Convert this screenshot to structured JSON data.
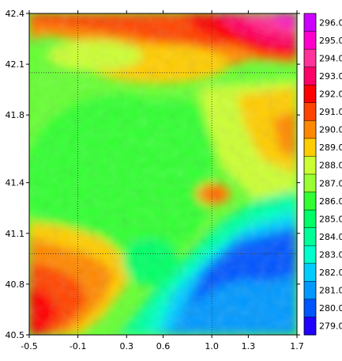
{
  "chart_data": {
    "type": "heatmap",
    "title": "",
    "xlabel": "",
    "ylabel": "",
    "xlim": [
      -0.5,
      1.7
    ],
    "ylim": [
      40.5,
      42.4
    ],
    "x_ticks": [
      "-0.5",
      "-0.1",
      "0.3",
      "0.6",
      "1.0",
      "1.3",
      "1.7"
    ],
    "x_tick_values": [
      -0.5,
      -0.1,
      0.3,
      0.6,
      1.0,
      1.3,
      1.7
    ],
    "y_ticks": [
      "42.4",
      "42.1",
      "41.8",
      "41.4",
      "41.1",
      "40.8",
      "40.5"
    ],
    "y_tick_values": [
      42.4,
      42.1,
      41.8,
      41.4,
      41.1,
      40.8,
      40.5
    ],
    "grid_lines": {
      "x": [
        -0.1,
        1.0
      ],
      "y": [
        42.05,
        40.98
      ],
      "style": "dotted"
    },
    "colorbar": {
      "placement": "right",
      "levels": [
        "296.0",
        "295.0",
        "294.0",
        "293.0",
        "292.0",
        "291.0",
        "290.0",
        "289.0",
        "288.0",
        "287.0",
        "286.0",
        "285.0",
        "284.0",
        "283.0",
        "282.0",
        "281.0",
        "280.0",
        "279.0"
      ],
      "colors": [
        "#cc00ff",
        "#ff00cc",
        "#ff3399",
        "#ff0066",
        "#ff0000",
        "#ff4400",
        "#ff8800",
        "#ffcc00",
        "#ccff33",
        "#99ff33",
        "#33ff33",
        "#00ff66",
        "#00ff99",
        "#00ffcc",
        "#00ccff",
        "#0099ff",
        "#0055ff",
        "#2200ff"
      ]
    },
    "field": {
      "description_levels": "temperature contours",
      "regions": [
        {
          "zone": "north",
          "level": 292.0
        },
        {
          "zone": "northeast",
          "level": 294.0
        },
        {
          "zone": "central",
          "level": 287.0
        },
        {
          "zone": "east-central",
          "level": 289.0
        },
        {
          "zone": "southwest",
          "level": 291.0
        },
        {
          "zone": "southeast",
          "level": 281.0
        }
      ]
    }
  }
}
